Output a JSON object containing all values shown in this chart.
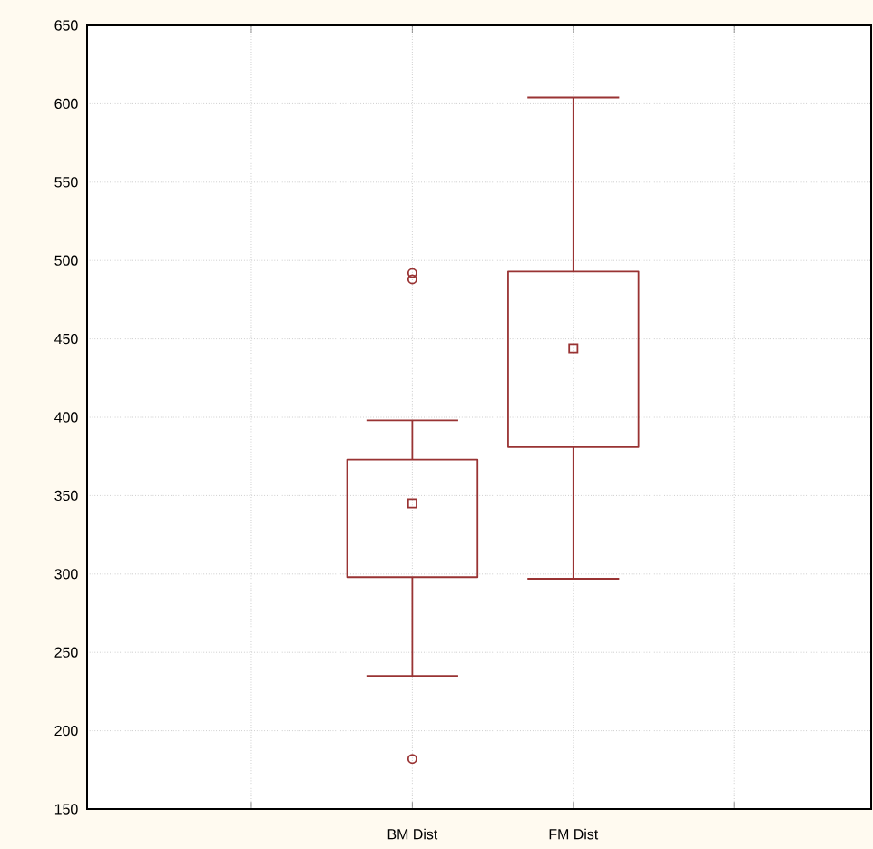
{
  "chart_data": {
    "type": "box",
    "categories": [
      "BM  Dist",
      "FM  Dist"
    ],
    "boxes": [
      {
        "low": 235,
        "q1": 298,
        "median": 345,
        "q3": 373,
        "high": 398,
        "outliers": [
          492,
          488,
          182
        ]
      },
      {
        "low": 297,
        "q1": 381,
        "median": 444,
        "q3": 493,
        "high": 604
      }
    ],
    "color": "#993333",
    "ylim": [
      150,
      650
    ],
    "yticks": [
      150,
      200,
      250,
      300,
      350,
      400,
      450,
      500,
      550,
      600,
      650
    ],
    "grid": true
  }
}
